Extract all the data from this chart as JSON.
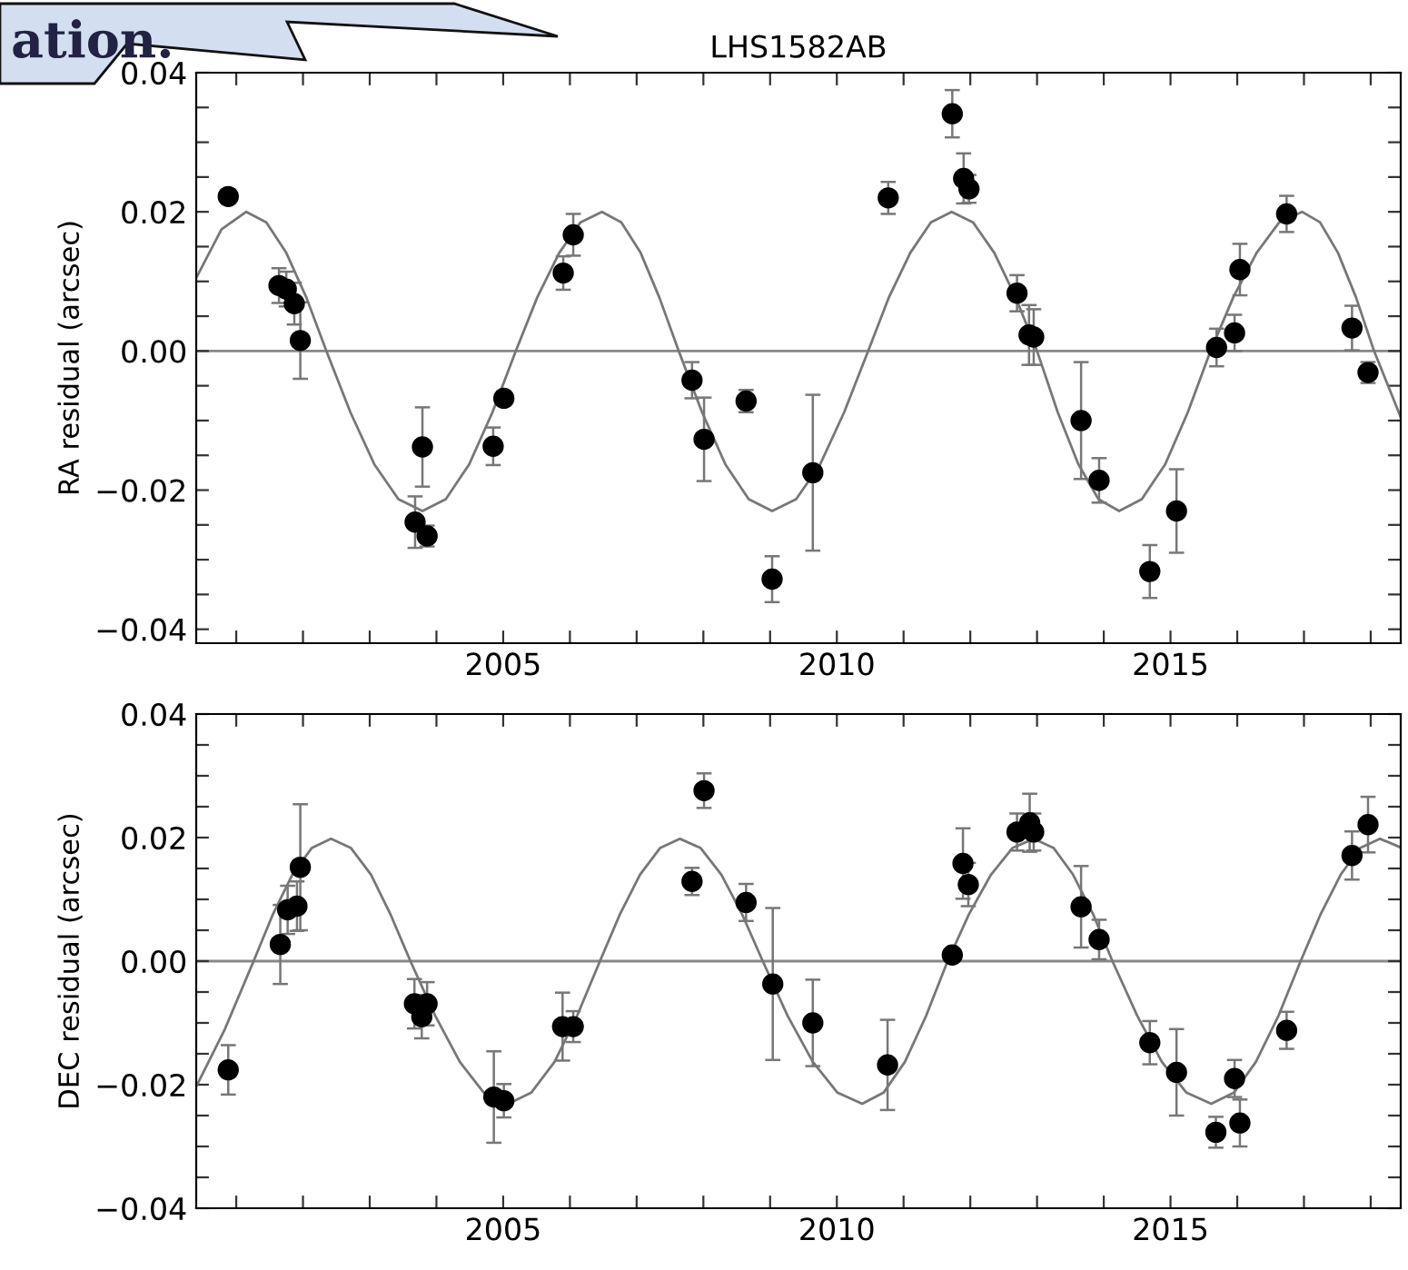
{
  "chart_data": [
    {
      "type": "scatter",
      "title": "LHS1582AB",
      "ylabel": "RA residual (arcsec)",
      "annotations": [
        "ation."
      ],
      "xlim": [
        2000.4,
        2018.45
      ],
      "ylim": [
        -0.042,
        0.04
      ],
      "xticks": [
        {
          "value": 2001,
          "label": null
        },
        {
          "value": 2002,
          "label": null
        },
        {
          "value": 2003,
          "label": null
        },
        {
          "value": 2004,
          "label": null
        },
        2005,
        {
          "value": 2006,
          "label": null
        },
        {
          "value": 2007,
          "label": null
        },
        {
          "value": 2008,
          "label": null
        },
        {
          "value": 2009,
          "label": null
        },
        2010,
        {
          "value": 2011,
          "label": null
        },
        {
          "value": 2012,
          "label": null
        },
        {
          "value": 2013,
          "label": null
        },
        {
          "value": 2014,
          "label": null
        },
        2015,
        {
          "value": 2016,
          "label": null
        },
        {
          "value": 2017,
          "label": null
        },
        {
          "value": 2018,
          "label": null
        }
      ],
      "yticks": [
        {
          "value": -0.04,
          "label": "−0.04"
        },
        {
          "value": -0.035,
          "label": null
        },
        {
          "value": -0.03,
          "label": null
        },
        {
          "value": -0.025,
          "label": null
        },
        {
          "value": -0.02,
          "label": "−0.02"
        },
        {
          "value": -0.015,
          "label": null
        },
        {
          "value": -0.01,
          "label": null
        },
        {
          "value": -0.005,
          "label": null
        },
        {
          "value": 0,
          "label": "0.00"
        },
        {
          "value": 0.005,
          "label": null
        },
        {
          "value": 0.01,
          "label": null
        },
        {
          "value": 0.015,
          "label": null
        },
        {
          "value": 0.02,
          "label": "0.02"
        },
        {
          "value": 0.025,
          "label": null
        },
        {
          "value": 0.03,
          "label": null
        },
        {
          "value": 0.035,
          "label": null
        },
        {
          "value": 0.04,
          "label": "0.04"
        }
      ],
      "ref_lines": [
        {
          "axis": "y",
          "value": 0,
          "color": "#888888"
        }
      ],
      "marker": "circle",
      "grid": false,
      "series": [
        {
          "type": "line",
          "marker": "none",
          "color": "#777777",
          "x": [
            2000.4,
            2000.78,
            2001.15,
            2001.45,
            2001.75,
            2002.05,
            2002.35,
            2002.71,
            2003.07,
            2003.43,
            2003.79,
            2004.14,
            2004.49,
            2004.84,
            2005.19,
            2005.51,
            2005.84,
            2006.16,
            2006.48,
            2006.77,
            2007.06,
            2007.34,
            2007.63,
            2007.98,
            2008.33,
            2008.68,
            2009.03,
            2009.39,
            2009.75,
            2010.11,
            2010.47,
            2010.78,
            2011.1,
            2011.41,
            2011.72,
            2012.04,
            2012.36,
            2012.68,
            2013.0,
            2013.31,
            2013.62,
            2013.92,
            2014.23,
            2014.57,
            2014.92,
            2015.26,
            2015.6,
            2015.94,
            2016.29,
            2016.63,
            2016.97,
            2017.24,
            2017.51,
            2017.78,
            2018.05,
            2018.45
          ],
          "values": [
            0.0105,
            0.0175,
            0.02,
            0.0185,
            0.0141,
            0.0077,
            0.0,
            -0.0088,
            -0.0163,
            -0.0213,
            -0.023,
            -0.0213,
            -0.0163,
            -0.0088,
            0.0,
            0.0077,
            0.0141,
            0.0185,
            0.02,
            0.0185,
            0.0141,
            0.0077,
            0.0,
            -0.0088,
            -0.0163,
            -0.0213,
            -0.023,
            -0.0213,
            -0.0163,
            -0.0088,
            0.0,
            0.0077,
            0.0141,
            0.0185,
            0.02,
            0.0185,
            0.0141,
            0.0077,
            0.0,
            -0.0088,
            -0.0163,
            -0.0213,
            -0.023,
            -0.0213,
            -0.0163,
            -0.0088,
            0.0,
            0.0077,
            0.0141,
            0.0185,
            0.02,
            0.0185,
            0.0141,
            0.0077,
            0.0,
            -0.0095
          ]
        },
        {
          "color": "#000000",
          "x": [
            2000.88,
            2001.64,
            2001.75,
            2001.87,
            2001.96,
            2003.68,
            2003.79,
            2003.86,
            2004.85,
            2005.01,
            2005.9,
            2006.05,
            2007.83,
            2008.01,
            2008.64,
            2009.03,
            2009.64,
            2010.77,
            2011.73,
            2011.9,
            2011.98,
            2012.7,
            2012.88,
            2012.95,
            2013.66,
            2013.93,
            2014.69,
            2015.09,
            2015.69,
            2015.96,
            2016.04,
            2016.74,
            2017.72,
            2017.96
          ],
          "values": [
            0.0222,
            0.0094,
            0.0089,
            0.0068,
            0.0015,
            -0.0246,
            -0.0138,
            -0.0266,
            -0.0137,
            -0.0068,
            0.0112,
            0.0167,
            -0.0042,
            -0.0127,
            -0.0072,
            -0.0328,
            -0.0175,
            0.022,
            0.0341,
            0.0248,
            0.0233,
            0.0083,
            0.0023,
            0.002,
            -0.01,
            -0.0186,
            -0.0317,
            -0.023,
            0.0005,
            0.0026,
            0.0117,
            0.0197,
            0.0033,
            -0.0031
          ],
          "errors": [
            0.001,
            0.0025,
            0.0025,
            0.003,
            0.0055,
            0.0037,
            0.0057,
            0.0015,
            0.0027,
            0.001,
            0.0024,
            0.003,
            0.0026,
            0.006,
            0.0016,
            0.0033,
            0.0112,
            0.0023,
            0.0034,
            0.0036,
            0.002,
            0.0026,
            0.0043,
            0.004,
            0.0084,
            0.0032,
            0.0038,
            0.006,
            0.0027,
            0.0026,
            0.0037,
            0.0026,
            0.0032,
            0.0015
          ]
        }
      ]
    },
    {
      "type": "scatter",
      "ylabel": "DEC residual (arcsec)",
      "xlim": [
        2000.4,
        2018.45
      ],
      "ylim": [
        -0.04,
        0.04
      ],
      "xticks": [
        {
          "value": 2001,
          "label": null
        },
        {
          "value": 2002,
          "label": null
        },
        {
          "value": 2003,
          "label": null
        },
        {
          "value": 2004,
          "label": null
        },
        2005,
        {
          "value": 2006,
          "label": null
        },
        {
          "value": 2007,
          "label": null
        },
        {
          "value": 2008,
          "label": null
        },
        {
          "value": 2009,
          "label": null
        },
        2010,
        {
          "value": 2011,
          "label": null
        },
        {
          "value": 2012,
          "label": null
        },
        {
          "value": 2013,
          "label": null
        },
        {
          "value": 2014,
          "label": null
        },
        2015,
        {
          "value": 2016,
          "label": null
        },
        {
          "value": 2017,
          "label": null
        },
        {
          "value": 2018,
          "label": null
        }
      ],
      "yticks": [
        {
          "value": -0.04,
          "label": "−0.04"
        },
        {
          "value": -0.035,
          "label": null
        },
        {
          "value": -0.03,
          "label": null
        },
        {
          "value": -0.025,
          "label": null
        },
        {
          "value": -0.02,
          "label": "−0.02"
        },
        {
          "value": -0.015,
          "label": null
        },
        {
          "value": -0.01,
          "label": null
        },
        {
          "value": -0.005,
          "label": null
        },
        {
          "value": 0,
          "label": "0.00"
        },
        {
          "value": 0.005,
          "label": null
        },
        {
          "value": 0.01,
          "label": null
        },
        {
          "value": 0.015,
          "label": null
        },
        {
          "value": 0.02,
          "label": "0.02"
        },
        {
          "value": 0.025,
          "label": null
        },
        {
          "value": 0.03,
          "label": null
        },
        {
          "value": 0.035,
          "label": null
        },
        {
          "value": 0.04,
          "label": "0.04"
        }
      ],
      "ref_lines": [
        {
          "axis": "y",
          "value": 0,
          "color": "#888888"
        }
      ],
      "marker": "circle",
      "grid": false,
      "series": [
        {
          "type": "line",
          "marker": "none",
          "color": "#777777",
          "x": [
            2000.4,
            2000.83,
            2001.26,
            2001.55,
            2001.84,
            2002.13,
            2002.42,
            2002.72,
            2003.02,
            2003.31,
            2003.61,
            2003.98,
            2004.35,
            2004.71,
            2005.08,
            2005.42,
            2005.77,
            2006.11,
            2006.45,
            2006.75,
            2007.05,
            2007.35,
            2007.65,
            2007.96,
            2008.27,
            2008.58,
            2008.89,
            2009.26,
            2009.64,
            2010.01,
            2010.38,
            2010.7,
            2011.02,
            2011.34,
            2011.66,
            2011.98,
            2012.31,
            2012.63,
            2012.95,
            2013.25,
            2013.54,
            2013.84,
            2014.13,
            2014.5,
            2014.87,
            2015.24,
            2015.61,
            2015.95,
            2016.28,
            2016.62,
            2016.95,
            2017.25,
            2017.55,
            2017.84,
            2018.14,
            2018.45
          ],
          "values": [
            -0.0203,
            -0.011,
            0.0,
            0.0076,
            0.014,
            0.0183,
            0.0198,
            0.0183,
            0.014,
            0.0076,
            0.0,
            -0.0088,
            -0.0163,
            -0.0213,
            -0.0231,
            -0.0213,
            -0.0163,
            -0.0088,
            0.0,
            0.0076,
            0.014,
            0.0183,
            0.0198,
            0.0183,
            0.014,
            0.0076,
            0.0,
            -0.0088,
            -0.0163,
            -0.0213,
            -0.0231,
            -0.0213,
            -0.0163,
            -0.0088,
            0.0,
            0.0076,
            0.014,
            0.0183,
            0.0198,
            0.0183,
            0.014,
            0.0076,
            0.0,
            -0.0088,
            -0.0163,
            -0.0213,
            -0.0231,
            -0.0213,
            -0.0163,
            -0.0088,
            0.0,
            0.0076,
            0.014,
            0.0183,
            0.0198,
            0.0184
          ]
        },
        {
          "color": "#000000",
          "x": [
            2000.88,
            2001.66,
            2001.77,
            2001.91,
            2001.96,
            2003.67,
            2003.78,
            2003.86,
            2004.86,
            2005.01,
            2005.89,
            2006.05,
            2007.83,
            2008.01,
            2008.64,
            2009.04,
            2009.64,
            2010.76,
            2011.73,
            2011.89,
            2011.97,
            2012.7,
            2012.89,
            2012.95,
            2013.66,
            2013.93,
            2014.69,
            2015.09,
            2015.68,
            2015.96,
            2016.04,
            2016.74,
            2017.72,
            2017.96
          ],
          "values": [
            -0.0176,
            0.0027,
            0.0083,
            0.0089,
            0.0152,
            -0.0069,
            -0.009,
            -0.0069,
            -0.022,
            -0.0226,
            -0.0106,
            -0.0106,
            0.0129,
            0.0276,
            0.0095,
            -0.0037,
            -0.01,
            -0.0168,
            0.001,
            0.0158,
            0.0124,
            0.0209,
            0.0224,
            0.0209,
            0.0088,
            0.0035,
            -0.0132,
            -0.018,
            -0.0277,
            -0.019,
            -0.0262,
            -0.0112,
            0.0171,
            0.0221
          ],
          "errors": [
            0.004,
            0.0064,
            0.0039,
            0.004,
            0.0102,
            0.004,
            0.0035,
            0.0035,
            0.0074,
            0.0027,
            0.0055,
            0.0025,
            0.0022,
            0.0028,
            0.003,
            0.0123,
            0.007,
            0.0073,
            null,
            0.0057,
            0.0035,
            0.003,
            0.0047,
            0.003,
            0.0066,
            0.0032,
            0.0035,
            0.007,
            0.0025,
            0.003,
            0.0038,
            0.003,
            0.0039,
            0.0045
          ]
        }
      ]
    }
  ]
}
